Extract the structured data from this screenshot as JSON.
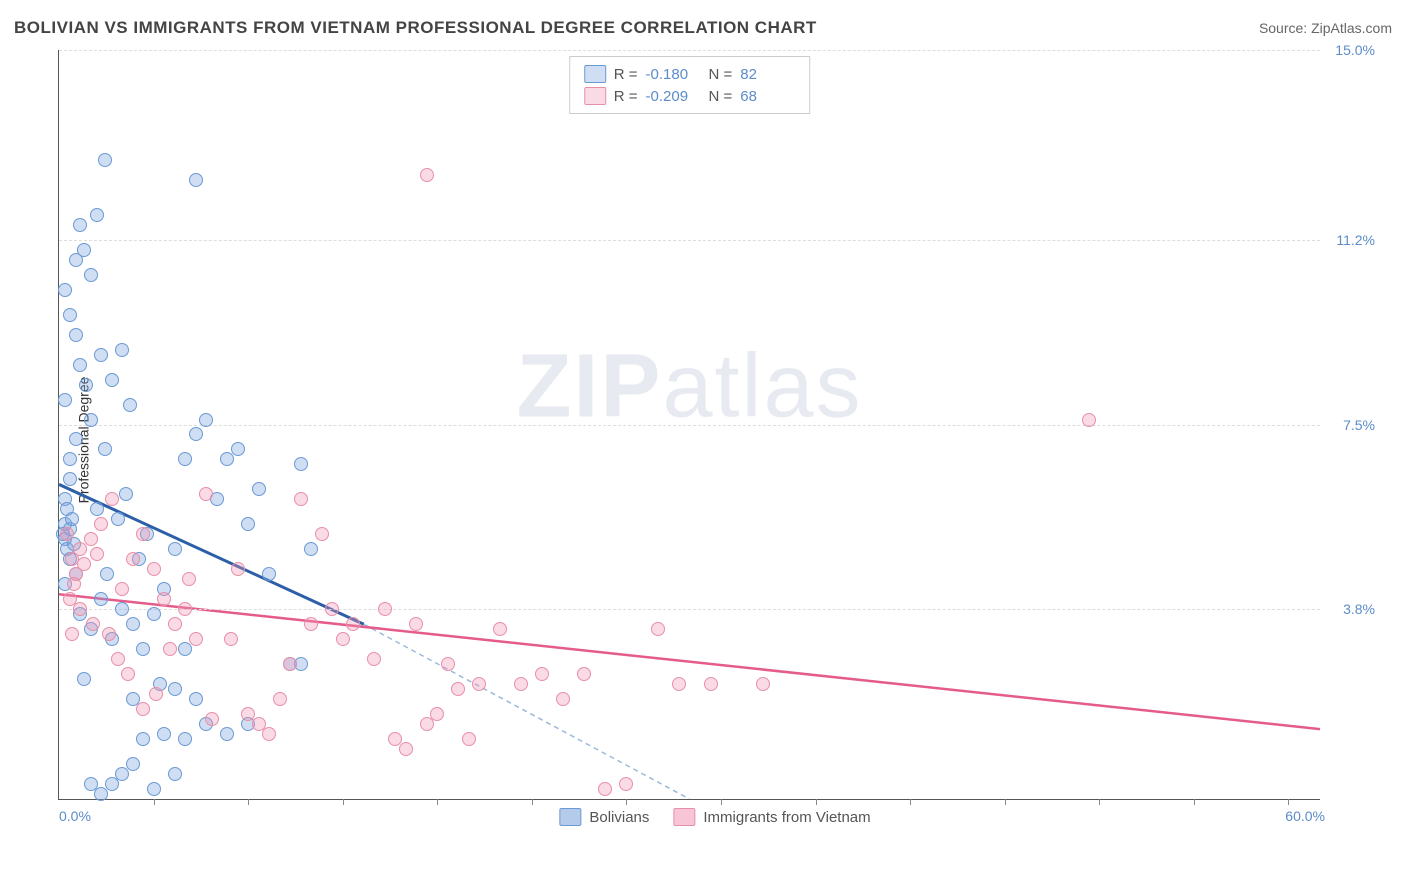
{
  "header": {
    "title": "BOLIVIAN VS IMMIGRANTS FROM VIETNAM PROFESSIONAL DEGREE CORRELATION CHART",
    "source": "Source: ZipAtlas.com"
  },
  "chart": {
    "type": "scatter",
    "y_axis_label": "Professional Degree",
    "xlim": [
      0,
      60
    ],
    "ylim": [
      0,
      15
    ],
    "x_tick_labels": {
      "min": "0.0%",
      "max": "60.0%"
    },
    "y_ticks": [
      {
        "value": 3.8,
        "label": "3.8%"
      },
      {
        "value": 7.5,
        "label": "7.5%"
      },
      {
        "value": 11.2,
        "label": "11.2%"
      },
      {
        "value": 15.0,
        "label": "15.0%"
      }
    ],
    "x_tick_positions": [
      4.5,
      9,
      13.5,
      18,
      22.5,
      27,
      31.5,
      36,
      40.5,
      45,
      49.5,
      54,
      58.5
    ],
    "grid_color": "#dddddd",
    "background_color": "#ffffff",
    "axis_color": "#555555",
    "point_radius": 7,
    "series": [
      {
        "name": "Bolivians",
        "fill": "rgba(120,160,220,0.35)",
        "stroke": "#6a9ad4",
        "R": "-0.180",
        "N": "82",
        "trend": {
          "x1": 0,
          "y1": 6.3,
          "x2": 14.5,
          "y2": 3.5,
          "stroke": "#2c5fa8",
          "width": 3,
          "dash_ext": {
            "x2": 30,
            "y2": 0,
            "stroke": "#9bb8dd"
          }
        },
        "points": [
          [
            0.3,
            6.0
          ],
          [
            0.3,
            5.2
          ],
          [
            0.3,
            5.5
          ],
          [
            0.5,
            4.8
          ],
          [
            0.4,
            5.0
          ],
          [
            0.4,
            5.8
          ],
          [
            0.5,
            5.4
          ],
          [
            0.6,
            5.6
          ],
          [
            0.5,
            6.4
          ],
          [
            0.2,
            5.3
          ],
          [
            0.7,
            5.1
          ],
          [
            0.8,
            4.5
          ],
          [
            0.3,
            4.3
          ],
          [
            1.0,
            11.5
          ],
          [
            1.2,
            11.0
          ],
          [
            1.5,
            10.5
          ],
          [
            0.8,
            10.8
          ],
          [
            2.2,
            12.8
          ],
          [
            1.8,
            11.7
          ],
          [
            0.5,
            9.7
          ],
          [
            0.8,
            9.3
          ],
          [
            1.0,
            8.7
          ],
          [
            1.3,
            8.3
          ],
          [
            0.3,
            8.0
          ],
          [
            0.3,
            10.2
          ],
          [
            0.8,
            7.2
          ],
          [
            2.0,
            8.9
          ],
          [
            2.5,
            8.4
          ],
          [
            3.0,
            9.0
          ],
          [
            1.5,
            7.6
          ],
          [
            2.2,
            7.0
          ],
          [
            0.5,
            6.8
          ],
          [
            1.0,
            3.7
          ],
          [
            1.5,
            3.4
          ],
          [
            2.0,
            4.0
          ],
          [
            2.5,
            3.2
          ],
          [
            3.0,
            3.8
          ],
          [
            3.5,
            3.5
          ],
          [
            1.2,
            2.4
          ],
          [
            1.5,
            0.3
          ],
          [
            2.0,
            0.1
          ],
          [
            2.5,
            0.3
          ],
          [
            3.0,
            0.5
          ],
          [
            3.5,
            0.7
          ],
          [
            4.0,
            1.2
          ],
          [
            5.0,
            1.3
          ],
          [
            6.0,
            1.2
          ],
          [
            4.5,
            0.2
          ],
          [
            5.5,
            0.5
          ],
          [
            3.5,
            2.0
          ],
          [
            4.0,
            3.0
          ],
          [
            4.5,
            3.7
          ],
          [
            5.0,
            4.2
          ],
          [
            5.5,
            5.0
          ],
          [
            6.0,
            6.8
          ],
          [
            6.5,
            7.3
          ],
          [
            7.0,
            7.6
          ],
          [
            7.5,
            6.0
          ],
          [
            8.0,
            6.8
          ],
          [
            8.5,
            7.0
          ],
          [
            9.0,
            5.5
          ],
          [
            9.5,
            6.2
          ],
          [
            10.0,
            4.5
          ],
          [
            11.0,
            2.7
          ],
          [
            11.5,
            6.7
          ],
          [
            12.0,
            5.0
          ],
          [
            6.5,
            12.4
          ],
          [
            5.5,
            2.2
          ],
          [
            6.0,
            3.0
          ],
          [
            6.5,
            2.0
          ],
          [
            7.0,
            1.5
          ],
          [
            8.0,
            1.3
          ],
          [
            9.0,
            1.5
          ],
          [
            2.8,
            5.6
          ],
          [
            3.2,
            6.1
          ],
          [
            3.8,
            4.8
          ],
          [
            4.2,
            5.3
          ],
          [
            1.8,
            5.8
          ],
          [
            2.3,
            4.5
          ],
          [
            3.4,
            7.9
          ],
          [
            4.8,
            2.3
          ],
          [
            11.5,
            2.7
          ]
        ]
      },
      {
        "name": "Immigrants from Vietnam",
        "fill": "rgba(240,150,180,0.35)",
        "stroke": "#e88fa8",
        "R": "-0.209",
        "N": "68",
        "trend": {
          "x1": 0,
          "y1": 4.1,
          "x2": 60,
          "y2": 1.4,
          "stroke": "#e55b8a",
          "width": 2.5
        },
        "points": [
          [
            0.4,
            5.3
          ],
          [
            0.6,
            4.8
          ],
          [
            0.8,
            4.5
          ],
          [
            1.0,
            5.0
          ],
          [
            1.2,
            4.7
          ],
          [
            0.5,
            4.0
          ],
          [
            0.7,
            4.3
          ],
          [
            1.5,
            5.2
          ],
          [
            1.8,
            4.9
          ],
          [
            2.0,
            5.5
          ],
          [
            2.5,
            6.0
          ],
          [
            3.0,
            4.2
          ],
          [
            3.5,
            4.8
          ],
          [
            4.0,
            5.3
          ],
          [
            4.5,
            4.6
          ],
          [
            5.0,
            4.0
          ],
          [
            5.5,
            3.5
          ],
          [
            6.0,
            3.8
          ],
          [
            6.5,
            3.2
          ],
          [
            7.0,
            6.1
          ],
          [
            8.5,
            4.6
          ],
          [
            11.5,
            6.0
          ],
          [
            9.0,
            1.7
          ],
          [
            9.5,
            1.5
          ],
          [
            10.0,
            1.3
          ],
          [
            10.5,
            2.0
          ],
          [
            11.0,
            2.7
          ],
          [
            12.5,
            5.3
          ],
          [
            12.0,
            3.5
          ],
          [
            13.0,
            3.8
          ],
          [
            13.5,
            3.2
          ],
          [
            14.0,
            3.5
          ],
          [
            15.0,
            2.8
          ],
          [
            15.5,
            3.8
          ],
          [
            16.0,
            1.2
          ],
          [
            16.5,
            1.0
          ],
          [
            17.0,
            3.5
          ],
          [
            17.5,
            1.5
          ],
          [
            18.0,
            1.7
          ],
          [
            18.5,
            2.7
          ],
          [
            19.0,
            2.2
          ],
          [
            19.5,
            1.2
          ],
          [
            20.0,
            2.3
          ],
          [
            21.0,
            3.4
          ],
          [
            22.0,
            2.3
          ],
          [
            23.0,
            2.5
          ],
          [
            24.0,
            2.0
          ],
          [
            25.0,
            2.5
          ],
          [
            26.0,
            0.2
          ],
          [
            27.0,
            0.3
          ],
          [
            28.5,
            3.4
          ],
          [
            29.5,
            2.3
          ],
          [
            31.0,
            2.3
          ],
          [
            33.5,
            2.3
          ],
          [
            17.5,
            12.5
          ],
          [
            49.0,
            7.6
          ],
          [
            5.3,
            3.0
          ],
          [
            6.2,
            4.4
          ],
          [
            7.3,
            1.6
          ],
          [
            8.2,
            3.2
          ],
          [
            3.3,
            2.5
          ],
          [
            4.0,
            1.8
          ],
          [
            4.6,
            2.1
          ],
          [
            2.4,
            3.3
          ],
          [
            2.8,
            2.8
          ],
          [
            1.6,
            3.5
          ],
          [
            1.0,
            3.8
          ],
          [
            0.6,
            3.3
          ]
        ]
      }
    ],
    "legend_bottom": [
      {
        "label": "Bolivians",
        "fill": "rgba(120,160,220,0.55)",
        "stroke": "#6a9ad4"
      },
      {
        "label": "Immigrants from Vietnam",
        "fill": "rgba(240,150,180,0.55)",
        "stroke": "#e88fa8"
      }
    ],
    "watermark": {
      "zip": "ZIP",
      "atlas": "atlas"
    }
  }
}
